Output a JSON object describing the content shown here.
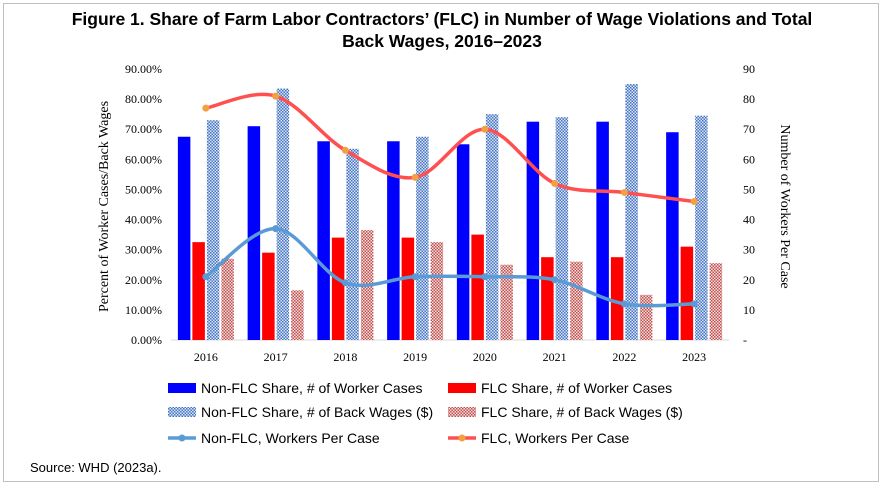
{
  "title_line1": "Figure 1. Share of Farm Labor Contractors’ (FLC) in Number of Wage Violations and Total",
  "title_line2": "Back Wages, 2016–2023",
  "source": "Source: WHD (2023a).",
  "chart_data": {
    "type": "bar",
    "categories": [
      "2016",
      "2017",
      "2018",
      "2019",
      "2020",
      "2021",
      "2022",
      "2023"
    ],
    "ylabel_left": "Percent of Worker Cases/Back Wages",
    "ylabel_right": "Number of Workers Per Case",
    "ylim_left": [
      0,
      90
    ],
    "ylim_right": [
      0,
      90
    ],
    "left_ticks": [
      "0.00%",
      "10.00%",
      "20.00%",
      "30.00%",
      "40.00%",
      "50.00%",
      "60.00%",
      "70.00%",
      "80.00%",
      "90.00%"
    ],
    "right_ticks": [
      "-",
      "10",
      "20",
      "30",
      "40",
      "50",
      "60",
      "70",
      "80",
      "90"
    ],
    "grid": false,
    "legend_position": "bottom",
    "bar_series": [
      {
        "name": "Non-FLC Share, # of Worker Cases",
        "color": "#0000ff",
        "pattern": "solid",
        "values": [
          67.5,
          71.0,
          66.0,
          66.0,
          65.0,
          72.5,
          72.5,
          69.0
        ]
      },
      {
        "name": "FLC Share, # of Worker Cases",
        "color": "#ff0000",
        "pattern": "solid",
        "values": [
          32.5,
          29.0,
          34.0,
          34.0,
          35.0,
          27.5,
          27.5,
          31.0
        ]
      },
      {
        "name": "Non-FLC Share, # of Back Wages ($)",
        "color": "#4472c4",
        "pattern": "checker",
        "values": [
          73.0,
          83.5,
          63.5,
          67.5,
          75.0,
          74.0,
          85.0,
          74.5
        ]
      },
      {
        "name": "FLC Share, # of Back Wages ($)",
        "color": "#c0504d",
        "pattern": "checker",
        "values": [
          27.0,
          16.5,
          36.5,
          32.5,
          25.0,
          26.0,
          15.0,
          25.5
        ]
      }
    ],
    "line_series": [
      {
        "name": "Non-FLC, Workers Per Case",
        "color": "#5b9bd5",
        "axis": "right",
        "values": [
          21,
          37,
          19,
          21,
          21,
          20,
          12,
          12
        ]
      },
      {
        "name": "FLC, Workers Per Case",
        "color": "#ff5050",
        "marker_color": "#f4a040",
        "axis": "right",
        "values": [
          77,
          81,
          63,
          54,
          70,
          52,
          49,
          46
        ]
      }
    ]
  }
}
